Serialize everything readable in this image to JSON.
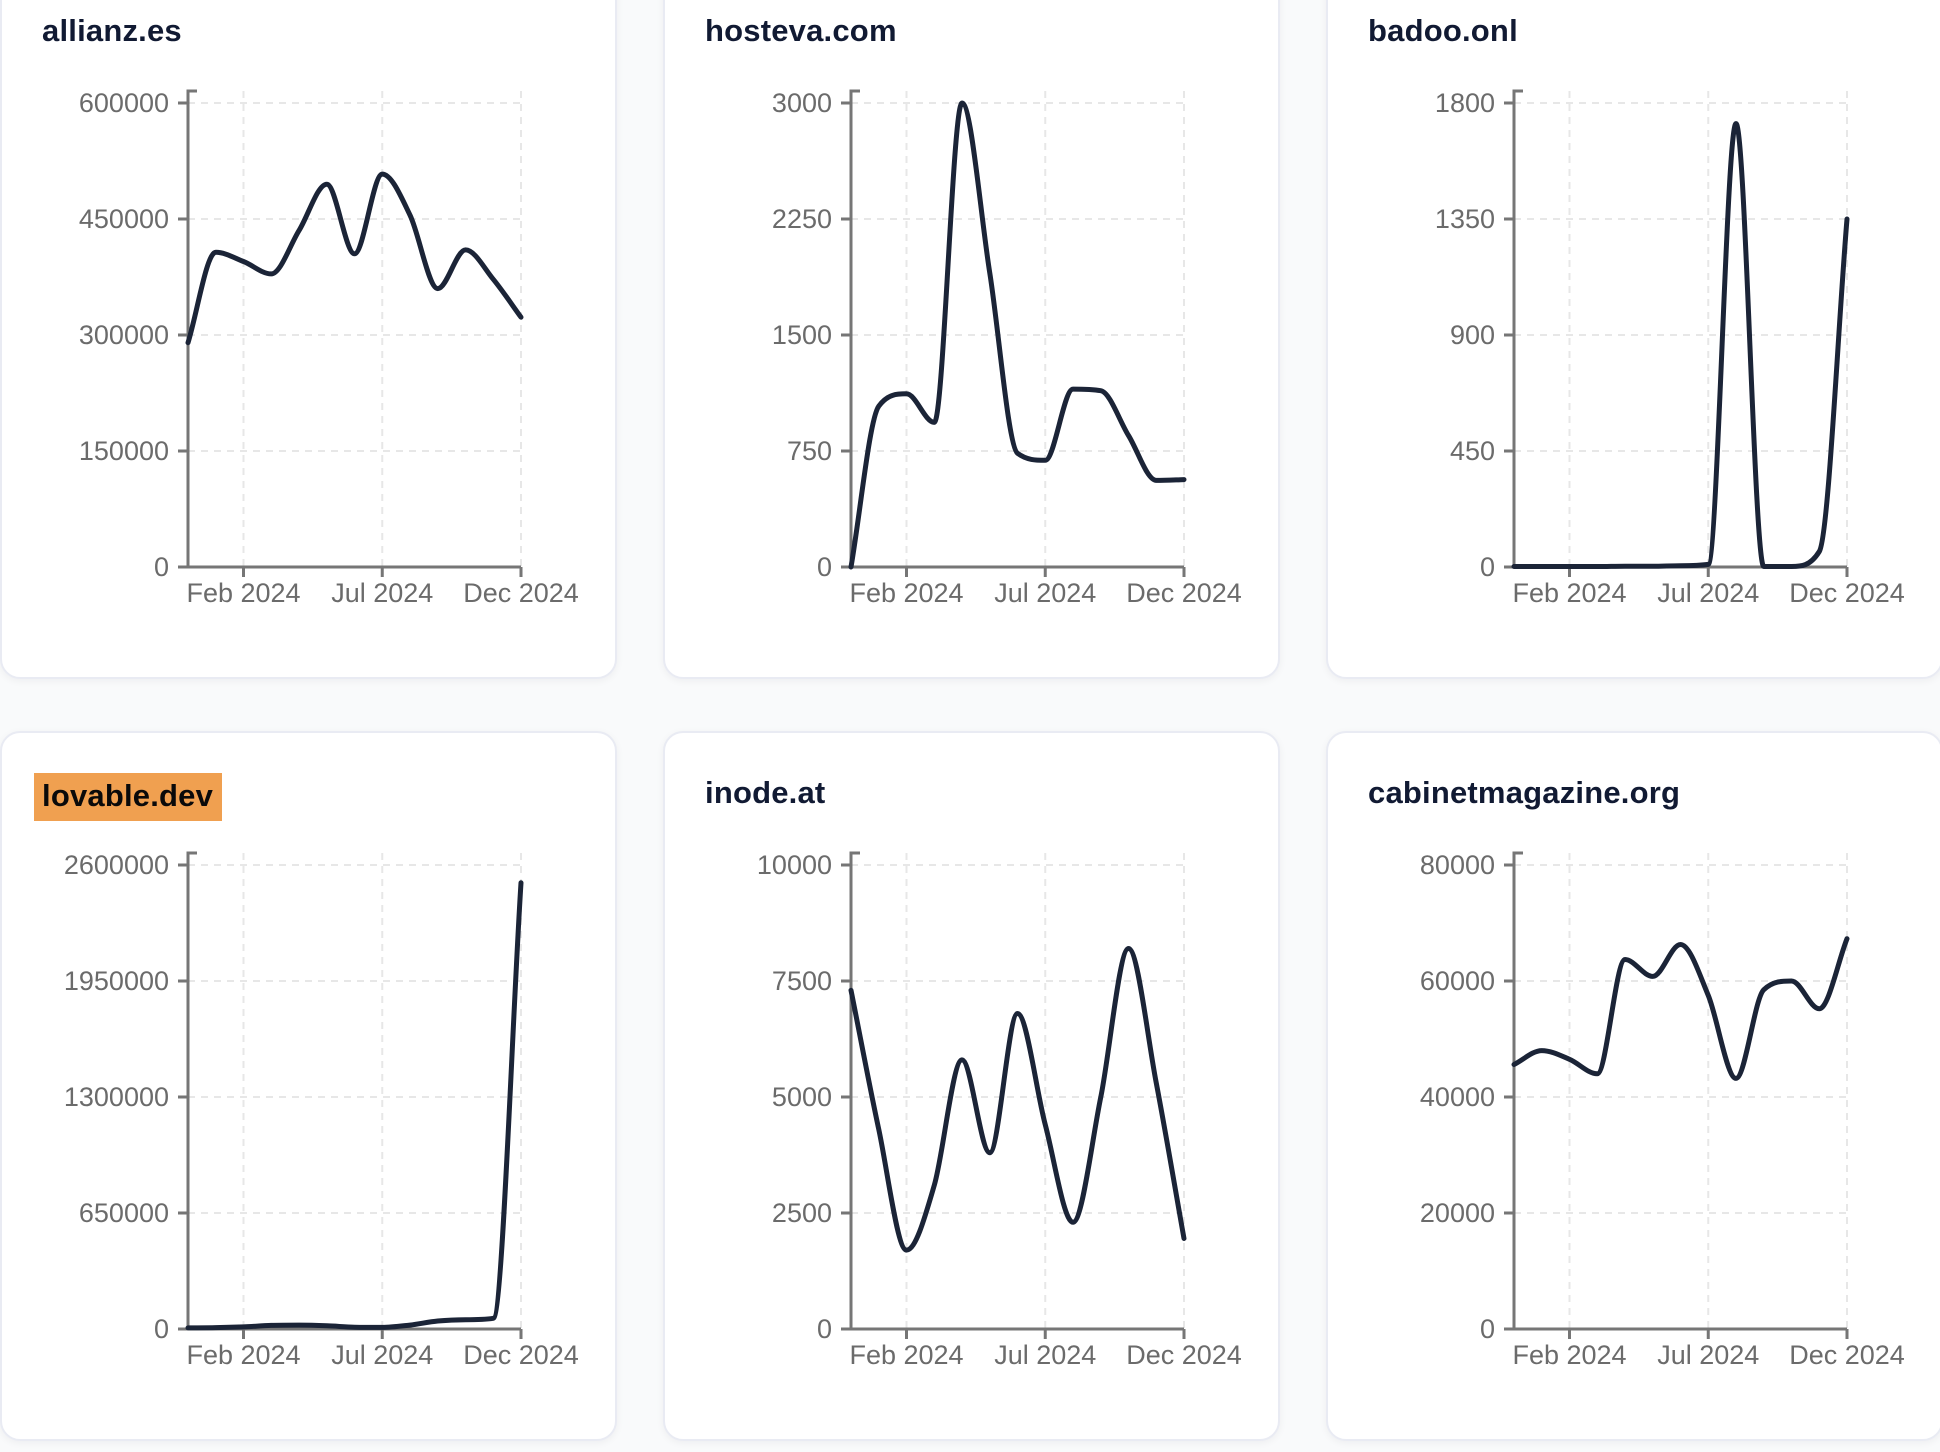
{
  "style": {
    "page_bg": "#f9fafb",
    "card_bg": "#ffffff",
    "card_border": "#e9ebf3",
    "title_color": "#111a33",
    "label_color": "#6b6b6b",
    "axis_color": "#767676",
    "grid_color": "#e7e7e7",
    "line_color": "#1b2437",
    "highlight_bg": "#f0a050",
    "highlight_text": "#0a0a0a"
  },
  "chart_data": [
    {
      "type": "line",
      "title": "allianz.es",
      "highlighted": false,
      "x_months": [
        "2023-12",
        "2024-01",
        "2024-02",
        "2024-03",
        "2024-04",
        "2024-05",
        "2024-06",
        "2024-07",
        "2024-08",
        "2024-09",
        "2024-10",
        "2024-11",
        "2024-12"
      ],
      "values": [
        290000,
        407000,
        395000,
        379000,
        435000,
        495000,
        405000,
        508000,
        455000,
        360000,
        410000,
        372000,
        323000
      ],
      "y_ticks": [
        0,
        150000,
        300000,
        450000,
        600000
      ],
      "ylim": [
        0,
        600000
      ],
      "x_tick_labels": [
        "Feb 2024",
        "Jul 2024",
        "Dec 2024"
      ],
      "x_tick_indices": [
        2,
        7,
        12
      ],
      "grid": true,
      "legend": "none"
    },
    {
      "type": "line",
      "title": "hosteva.com",
      "highlighted": false,
      "x_months": [
        "2023-12",
        "2024-01",
        "2024-02",
        "2024-03",
        "2024-04",
        "2024-05",
        "2024-06",
        "2024-07",
        "2024-08",
        "2024-09",
        "2024-10",
        "2024-11",
        "2024-12"
      ],
      "values": [
        0,
        1040,
        1120,
        935,
        3000,
        1900,
        735,
        690,
        1150,
        1140,
        850,
        560,
        565
      ],
      "y_ticks": [
        0,
        750,
        1500,
        2250,
        3000
      ],
      "ylim": [
        0,
        3000
      ],
      "x_tick_labels": [
        "Feb 2024",
        "Jul 2024",
        "Dec 2024"
      ],
      "x_tick_indices": [
        2,
        7,
        12
      ],
      "grid": true,
      "legend": "none"
    },
    {
      "type": "line",
      "title": "badoo.onl",
      "highlighted": false,
      "x_months": [
        "2023-12",
        "2024-01",
        "2024-02",
        "2024-03",
        "2024-04",
        "2024-05",
        "2024-06",
        "2024-07",
        "2024-08",
        "2024-09",
        "2024-10",
        "2024-11",
        "2024-12"
      ],
      "values": [
        2,
        2,
        2,
        2,
        3,
        3,
        5,
        10,
        1720,
        2,
        2,
        60,
        1350
      ],
      "y_ticks": [
        0,
        450,
        900,
        1350,
        1800
      ],
      "ylim": [
        0,
        1800
      ],
      "x_tick_labels": [
        "Feb 2024",
        "Jul 2024",
        "Dec 2024"
      ],
      "x_tick_indices": [
        2,
        7,
        12
      ],
      "grid": true,
      "legend": "none"
    },
    {
      "type": "line",
      "title": "lovable.dev",
      "highlighted": true,
      "x_months": [
        "2023-12",
        "2024-01",
        "2024-02",
        "2024-03",
        "2024-04",
        "2024-05",
        "2024-06",
        "2024-07",
        "2024-08",
        "2024-09",
        "2024-10",
        "2024-11",
        "2024-12"
      ],
      "values": [
        6000,
        8000,
        12000,
        20000,
        22000,
        18000,
        10000,
        9000,
        22000,
        45000,
        52000,
        60000,
        2500000
      ],
      "y_ticks": [
        0,
        650000,
        1300000,
        1950000,
        2600000
      ],
      "ylim": [
        0,
        2600000
      ],
      "x_tick_labels": [
        "Feb 2024",
        "Jul 2024",
        "Dec 2024"
      ],
      "x_tick_indices": [
        2,
        7,
        12
      ],
      "grid": true,
      "legend": "none"
    },
    {
      "type": "line",
      "title": "inode.at",
      "highlighted": false,
      "x_months": [
        "2023-12",
        "2024-01",
        "2024-02",
        "2024-03",
        "2024-04",
        "2024-05",
        "2024-06",
        "2024-07",
        "2024-08",
        "2024-09",
        "2024-10",
        "2024-11",
        "2024-12"
      ],
      "values": [
        7300,
        4300,
        1700,
        3100,
        5800,
        3800,
        6800,
        4400,
        2300,
        5000,
        8200,
        5300,
        1950
      ],
      "y_ticks": [
        0,
        2500,
        5000,
        7500,
        10000
      ],
      "ylim": [
        0,
        10000
      ],
      "x_tick_labels": [
        "Feb 2024",
        "Jul 2024",
        "Dec 2024"
      ],
      "x_tick_indices": [
        2,
        7,
        12
      ],
      "grid": true,
      "legend": "none"
    },
    {
      "type": "line",
      "title": "cabinetmagazine.org",
      "highlighted": false,
      "x_months": [
        "2023-12",
        "2024-01",
        "2024-02",
        "2024-03",
        "2024-04",
        "2024-05",
        "2024-06",
        "2024-07",
        "2024-08",
        "2024-09",
        "2024-10",
        "2024-11",
        "2024-12"
      ],
      "values": [
        45600,
        48000,
        46500,
        44000,
        63700,
        60800,
        66300,
        57500,
        43200,
        58500,
        60000,
        55200,
        67300
      ],
      "y_ticks": [
        0,
        20000,
        40000,
        60000,
        80000
      ],
      "ylim": [
        0,
        80000
      ],
      "x_tick_labels": [
        "Feb 2024",
        "Jul 2024",
        "Dec 2024"
      ],
      "x_tick_indices": [
        2,
        7,
        12
      ],
      "grid": true,
      "legend": "none"
    }
  ]
}
